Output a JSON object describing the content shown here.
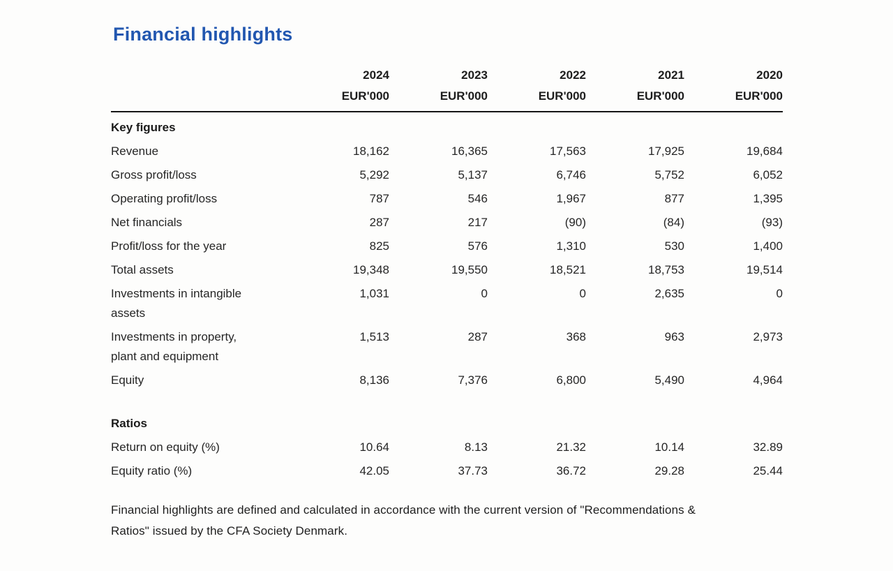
{
  "page": {
    "title": "Financial highlights"
  },
  "table": {
    "unit_label": "EUR'000",
    "years": [
      "2024",
      "2023",
      "2022",
      "2021",
      "2020"
    ],
    "sections": [
      {
        "heading": "Key figures",
        "rows": [
          {
            "label": "Revenue",
            "values": [
              "18,162",
              "16,365",
              "17,563",
              "17,925",
              "19,684"
            ]
          },
          {
            "label": "Gross profit/loss",
            "values": [
              "5,292",
              "5,137",
              "6,746",
              "5,752",
              "6,052"
            ]
          },
          {
            "label": "Operating profit/loss",
            "values": [
              "787",
              "546",
              "1,967",
              "877",
              "1,395"
            ]
          },
          {
            "label": "Net financials",
            "values": [
              "287",
              "217",
              "(90)",
              "(84)",
              "(93)"
            ]
          },
          {
            "label": "Profit/loss for the year",
            "values": [
              "825",
              "576",
              "1,310",
              "530",
              "1,400"
            ]
          },
          {
            "label": "Total assets",
            "values": [
              "19,348",
              "19,550",
              "18,521",
              "18,753",
              "19,514"
            ]
          },
          {
            "label": "Investments in intangible\nassets",
            "values": [
              "1,031",
              "0",
              "0",
              "2,635",
              "0"
            ]
          },
          {
            "label": "Investments in property,\nplant and equipment",
            "values": [
              "1,513",
              "287",
              "368",
              "963",
              "2,973"
            ]
          },
          {
            "label": "Equity",
            "values": [
              "8,136",
              "7,376",
              "6,800",
              "5,490",
              "4,964"
            ]
          }
        ]
      },
      {
        "heading": "Ratios",
        "rows": [
          {
            "label": "Return on equity (%)",
            "values": [
              "10.64",
              "8.13",
              "21.32",
              "10.14",
              "32.89"
            ]
          },
          {
            "label": "Equity ratio (%)",
            "values": [
              "42.05",
              "37.73",
              "36.72",
              "29.28",
              "25.44"
            ]
          }
        ]
      }
    ]
  },
  "footnote": {
    "lines": [
      "Financial highlights are defined and calculated in accordance with the current version of \"Recommendations &",
      "Ratios\" issued by the CFA Society Denmark."
    ]
  },
  "colors": {
    "title_blue": "#2257b0",
    "text": "#262626",
    "rule": "#161616"
  }
}
